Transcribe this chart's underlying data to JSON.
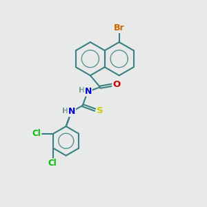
{
  "bg_color": "#e8eaea",
  "bond_color": "#3a8080",
  "bond_width": 1.5,
  "atom_colors": {
    "Br": "#cc6600",
    "O": "#cc0000",
    "N": "#0000cc",
    "S": "#cccc00",
    "Cl": "#00bb00",
    "C": "#3a8080",
    "H": "#7a9a9a"
  },
  "font_size": 8.5,
  "fig_size": [
    3.0,
    3.0
  ],
  "dpi": 100
}
